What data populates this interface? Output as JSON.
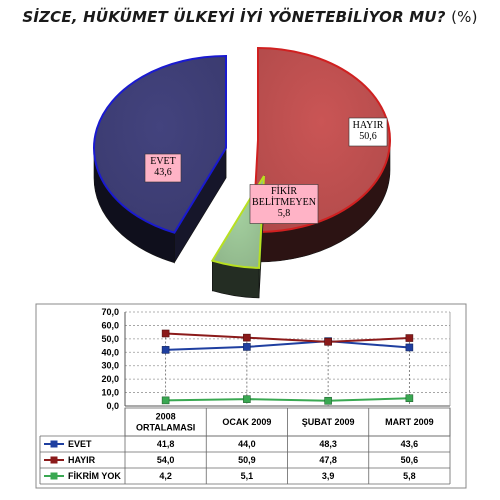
{
  "title": "SİZCE, HÜKÜMET ÜLKEYİ İYİ YÖNETEBİLİYOR MU?",
  "title_unit": "(%)",
  "colors": {
    "evet_pie": "#3a3a6e",
    "hayir_pie": "#b04a4a",
    "fikir_pie": "#8fb58a",
    "evet_line": "#1f3fa0",
    "hayir_line": "#8b1a1a",
    "fikir_line": "#3aa852"
  },
  "chart_data": [
    {
      "type": "pie",
      "title": "",
      "slices": [
        {
          "label": "EVET",
          "value": 43.6,
          "value_label": "43,6"
        },
        {
          "label": "HAYIR",
          "value": 50.6,
          "value_label": "50,6"
        },
        {
          "label": "FİKİR BELİTMEYEN",
          "label_lines": [
            "FİKİR",
            "BELİTMEYEN"
          ],
          "value": 5.8,
          "value_label": "5,8"
        }
      ]
    },
    {
      "type": "line",
      "title": "",
      "categories": [
        {
          "lines": [
            "2008",
            "ORTALAMASI"
          ]
        },
        {
          "lines": [
            "OCAK 2009"
          ]
        },
        {
          "lines": [
            "ŞUBAT 2009"
          ]
        },
        {
          "lines": [
            "MART 2009"
          ]
        }
      ],
      "ylim": [
        0,
        70
      ],
      "yticks": [
        {
          "value": 0,
          "label": "0,0"
        },
        {
          "value": 10,
          "label": "10,0"
        },
        {
          "value": 20,
          "label": "20,0"
        },
        {
          "value": 30,
          "label": "30,0"
        },
        {
          "value": 40,
          "label": "40,0"
        },
        {
          "value": 50,
          "label": "50,0"
        },
        {
          "value": 60,
          "label": "60,0"
        },
        {
          "value": 70,
          "label": "70,0"
        }
      ],
      "grid": true,
      "legend": "table-left",
      "series": [
        {
          "name": "EVET",
          "values": [
            41.8,
            44.0,
            48.3,
            43.6
          ],
          "labels": [
            "41,8",
            "44,0",
            "48,3",
            "43,6"
          ]
        },
        {
          "name": "HAYIR",
          "values": [
            54.0,
            50.9,
            47.8,
            50.6
          ],
          "labels": [
            "54,0",
            "50,9",
            "47,8",
            "50,6"
          ]
        },
        {
          "name": "FİKRİM YOK",
          "values": [
            4.2,
            5.1,
            3.9,
            5.8
          ],
          "labels": [
            "4,2",
            "5,1",
            "3,9",
            "5,8"
          ]
        }
      ]
    }
  ]
}
